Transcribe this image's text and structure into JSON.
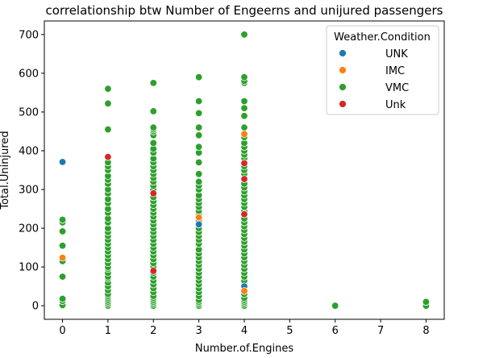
{
  "chart_data": {
    "type": "scatter",
    "title": "correlationship btw Number of Engeerns and unijured passengers",
    "xlabel": "Number.of.Engines",
    "ylabel": "Total.Uninjured",
    "xlim": [
      -0.4,
      8.4
    ],
    "ylim": [
      -35,
      735
    ],
    "xticks": [
      0,
      1,
      2,
      3,
      4,
      5,
      6,
      7,
      8
    ],
    "yticks": [
      0,
      100,
      200,
      300,
      400,
      500,
      600,
      700
    ],
    "grid": false,
    "legend": {
      "title": "Weather.Condition",
      "placement": "top-right"
    },
    "series": [
      {
        "name": "VMC",
        "color": "#2ca02c",
        "points": [
          [
            0,
            0
          ],
          [
            0,
            2
          ],
          [
            0,
            12
          ],
          [
            0,
            18
          ],
          [
            0,
            75
          ],
          [
            0,
            115
          ],
          [
            0,
            155
          ],
          [
            0,
            192
          ],
          [
            0,
            215
          ],
          [
            0,
            222
          ],
          [
            1,
            0
          ],
          [
            1,
            5
          ],
          [
            1,
            10
          ],
          [
            1,
            15
          ],
          [
            1,
            20
          ],
          [
            1,
            25
          ],
          [
            1,
            30
          ],
          [
            1,
            40
          ],
          [
            1,
            50
          ],
          [
            1,
            60
          ],
          [
            1,
            70
          ],
          [
            1,
            75
          ],
          [
            1,
            85
          ],
          [
            1,
            95
          ],
          [
            1,
            100
          ],
          [
            1,
            110
          ],
          [
            1,
            120
          ],
          [
            1,
            130
          ],
          [
            1,
            140
          ],
          [
            1,
            150
          ],
          [
            1,
            160
          ],
          [
            1,
            170
          ],
          [
            1,
            180
          ],
          [
            1,
            190
          ],
          [
            1,
            200
          ],
          [
            1,
            215
          ],
          [
            1,
            225
          ],
          [
            1,
            240
          ],
          [
            1,
            250
          ],
          [
            1,
            265
          ],
          [
            1,
            275
          ],
          [
            1,
            290
          ],
          [
            1,
            300
          ],
          [
            1,
            315
          ],
          [
            1,
            325
          ],
          [
            1,
            335
          ],
          [
            1,
            350
          ],
          [
            1,
            360
          ],
          [
            1,
            370
          ],
          [
            1,
            455
          ],
          [
            1,
            522
          ],
          [
            1,
            560
          ],
          [
            2,
            0
          ],
          [
            2,
            5
          ],
          [
            2,
            10
          ],
          [
            2,
            15
          ],
          [
            2,
            20
          ],
          [
            2,
            25
          ],
          [
            2,
            35
          ],
          [
            2,
            45
          ],
          [
            2,
            55
          ],
          [
            2,
            65
          ],
          [
            2,
            75
          ],
          [
            2,
            85
          ],
          [
            2,
            100
          ],
          [
            2,
            110
          ],
          [
            2,
            120
          ],
          [
            2,
            130
          ],
          [
            2,
            140
          ],
          [
            2,
            150
          ],
          [
            2,
            160
          ],
          [
            2,
            170
          ],
          [
            2,
            180
          ],
          [
            2,
            190
          ],
          [
            2,
            200
          ],
          [
            2,
            210
          ],
          [
            2,
            220
          ],
          [
            2,
            230
          ],
          [
            2,
            240
          ],
          [
            2,
            250
          ],
          [
            2,
            260
          ],
          [
            2,
            270
          ],
          [
            2,
            280
          ],
          [
            2,
            300
          ],
          [
            2,
            310
          ],
          [
            2,
            320
          ],
          [
            2,
            330
          ],
          [
            2,
            340
          ],
          [
            2,
            350
          ],
          [
            2,
            360
          ],
          [
            2,
            370
          ],
          [
            2,
            380
          ],
          [
            2,
            395
          ],
          [
            2,
            405
          ],
          [
            2,
            420
          ],
          [
            2,
            440
          ],
          [
            2,
            450
          ],
          [
            2,
            455
          ],
          [
            2,
            460
          ],
          [
            2,
            502
          ],
          [
            2,
            575
          ],
          [
            3,
            0
          ],
          [
            3,
            5
          ],
          [
            3,
            10
          ],
          [
            3,
            15
          ],
          [
            3,
            25
          ],
          [
            3,
            35
          ],
          [
            3,
            45
          ],
          [
            3,
            55
          ],
          [
            3,
            65
          ],
          [
            3,
            75
          ],
          [
            3,
            85
          ],
          [
            3,
            95
          ],
          [
            3,
            105
          ],
          [
            3,
            115
          ],
          [
            3,
            125
          ],
          [
            3,
            135
          ],
          [
            3,
            145
          ],
          [
            3,
            160
          ],
          [
            3,
            170
          ],
          [
            3,
            180
          ],
          [
            3,
            190
          ],
          [
            3,
            200
          ],
          [
            3,
            210
          ],
          [
            3,
            220
          ],
          [
            3,
            235
          ],
          [
            3,
            245
          ],
          [
            3,
            255
          ],
          [
            3,
            265
          ],
          [
            3,
            275
          ],
          [
            3,
            285
          ],
          [
            3,
            300
          ],
          [
            3,
            310
          ],
          [
            3,
            320
          ],
          [
            3,
            340
          ],
          [
            3,
            370
          ],
          [
            3,
            395
          ],
          [
            3,
            410
          ],
          [
            3,
            440
          ],
          [
            3,
            460
          ],
          [
            3,
            497
          ],
          [
            3,
            528
          ],
          [
            3,
            590
          ],
          [
            4,
            0
          ],
          [
            4,
            5
          ],
          [
            4,
            10
          ],
          [
            4,
            15
          ],
          [
            4,
            20
          ],
          [
            4,
            30
          ],
          [
            4,
            40
          ],
          [
            4,
            55
          ],
          [
            4,
            65
          ],
          [
            4,
            75
          ],
          [
            4,
            85
          ],
          [
            4,
            95
          ],
          [
            4,
            105
          ],
          [
            4,
            115
          ],
          [
            4,
            125
          ],
          [
            4,
            135
          ],
          [
            4,
            145
          ],
          [
            4,
            155
          ],
          [
            4,
            165
          ],
          [
            4,
            175
          ],
          [
            4,
            185
          ],
          [
            4,
            195
          ],
          [
            4,
            205
          ],
          [
            4,
            215
          ],
          [
            4,
            225
          ],
          [
            4,
            245
          ],
          [
            4,
            255
          ],
          [
            4,
            265
          ],
          [
            4,
            275
          ],
          [
            4,
            285
          ],
          [
            4,
            295
          ],
          [
            4,
            305
          ],
          [
            4,
            315
          ],
          [
            4,
            340
          ],
          [
            4,
            350
          ],
          [
            4,
            360
          ],
          [
            4,
            380
          ],
          [
            4,
            390
          ],
          [
            4,
            400
          ],
          [
            4,
            410
          ],
          [
            4,
            420
          ],
          [
            4,
            435
          ],
          [
            4,
            460
          ],
          [
            4,
            490
          ],
          [
            4,
            510
          ],
          [
            4,
            528
          ],
          [
            4,
            575
          ],
          [
            4,
            580
          ],
          [
            4,
            590
          ],
          [
            4,
            700
          ],
          [
            6,
            0
          ],
          [
            8,
            0
          ],
          [
            8,
            10
          ]
        ]
      },
      {
        "name": "UNK",
        "color": "#1f77b4",
        "points": [
          [
            0,
            371
          ],
          [
            3,
            210
          ],
          [
            4,
            50
          ]
        ]
      },
      {
        "name": "IMC",
        "color": "#ff7f0e",
        "points": [
          [
            0,
            124
          ],
          [
            3,
            228
          ],
          [
            4,
            38
          ],
          [
            4,
            443
          ]
        ]
      },
      {
        "name": "Unk",
        "color": "#d62728",
        "points": [
          [
            1,
            384
          ],
          [
            2,
            290
          ],
          [
            2,
            90
          ],
          [
            4,
            327
          ],
          [
            4,
            368
          ],
          [
            4,
            236
          ]
        ]
      }
    ],
    "legend_order": [
      "UNK",
      "IMC",
      "VMC",
      "Unk"
    ]
  }
}
